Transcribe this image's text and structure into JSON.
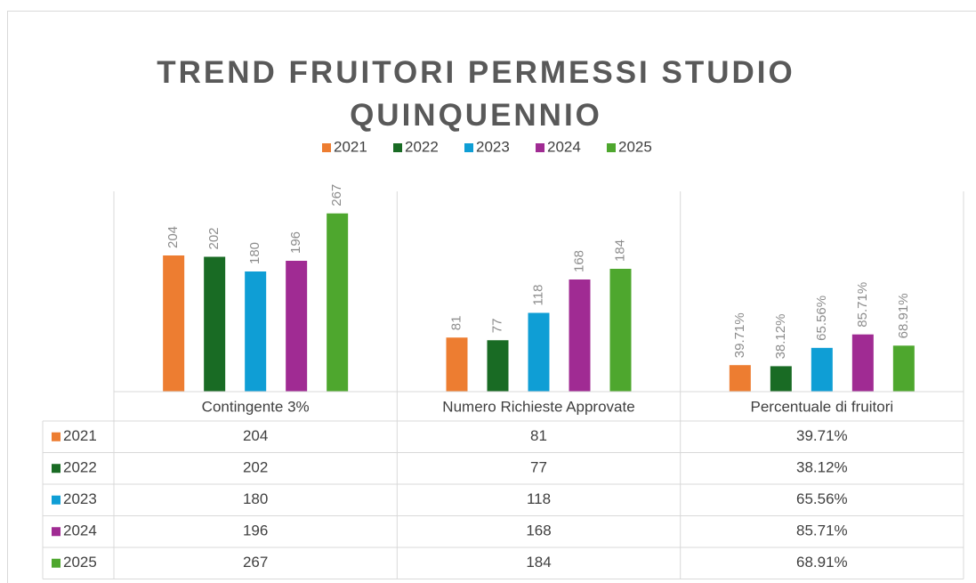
{
  "chart_data": {
    "type": "bar",
    "title": "TREND FRUITORI PERMESSI STUDIO QUINQUENNIO",
    "categories": [
      "Contingente 3%",
      "Numero Richieste Approvate",
      "Percentuale di fruitori"
    ],
    "series": [
      {
        "name": "2021",
        "color": "#ed7d31",
        "values": [
          204,
          81,
          39.71
        ],
        "value_labels": [
          "204",
          "81",
          "39.71%"
        ]
      },
      {
        "name": "2022",
        "color": "#196b24",
        "values": [
          202,
          77,
          38.12
        ],
        "value_labels": [
          "202",
          "77",
          "38.12%"
        ]
      },
      {
        "name": "2023",
        "color": "#0f9ed5",
        "values": [
          180,
          118,
          65.56
        ],
        "value_labels": [
          "180",
          "118",
          "65.56%"
        ]
      },
      {
        "name": "2024",
        "color": "#a02b93",
        "values": [
          196,
          168,
          85.71
        ],
        "value_labels": [
          "196",
          "168",
          "85.71%"
        ]
      },
      {
        "name": "2025",
        "color": "#4ea72e",
        "values": [
          267,
          184,
          68.91
        ],
        "value_labels": [
          "267",
          "184",
          "68.91%"
        ]
      }
    ],
    "ylim": [
      0,
      300
    ],
    "legend": "top",
    "data_table": true
  }
}
